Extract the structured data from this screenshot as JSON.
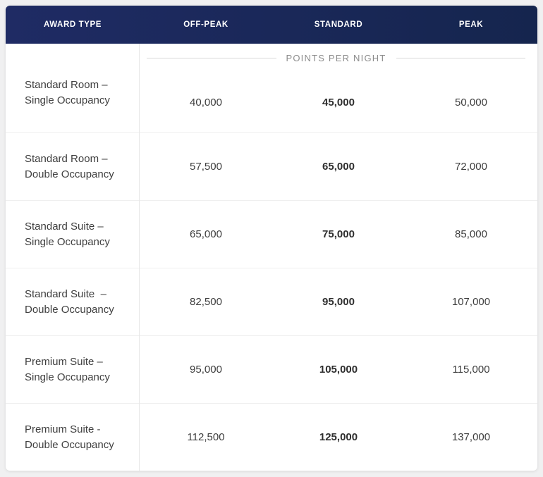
{
  "award_chart": {
    "header": {
      "columns": [
        {
          "label": "AWARD TYPE"
        },
        {
          "label": "OFF-PEAK"
        },
        {
          "label": "STANDARD"
        },
        {
          "label": "PEAK"
        }
      ],
      "background_left": "#1f2b64",
      "background_right": "#15254e",
      "text_color": "#ffffff"
    },
    "group_label": "POINTS PER NIGHT",
    "rows": [
      {
        "award_type": "Standard Room –\nSingle Occupancy",
        "off_peak": "40,000",
        "standard": "45,000",
        "peak": "50,000"
      },
      {
        "award_type": "Standard Room –\nDouble Occupancy",
        "off_peak": "57,500",
        "standard": "65,000",
        "peak": "72,000"
      },
      {
        "award_type": "Standard Suite –\nSingle Occupancy",
        "off_peak": "65,000",
        "standard": "75,000",
        "peak": "85,000"
      },
      {
        "award_type": "Standard Suite  –\nDouble Occupancy",
        "off_peak": "82,500",
        "standard": "95,000",
        "peak": "107,000"
      },
      {
        "award_type": "Premium Suite –\nSingle Occupancy",
        "off_peak": "95,000",
        "standard": "105,000",
        "peak": "115,000"
      },
      {
        "award_type": "Premium Suite -\nDouble Occupancy",
        "off_peak": "112,500",
        "standard": "125,000",
        "peak": "137,000"
      }
    ],
    "colors": {
      "page_background": "#f0f0f1",
      "card_background": "#ffffff",
      "row_separator": "#efefef",
      "column_divider": "#e7e7e7",
      "group_label_text": "#8c8c8c",
      "value_text": "#3d3d3d",
      "bold_value_text": "#2e2e2e"
    }
  },
  "chart_data": {
    "type": "table",
    "title": "Award Chart — Points Per Night",
    "columns": [
      "AWARD TYPE",
      "OFF-PEAK",
      "STANDARD",
      "PEAK"
    ],
    "group_header": "POINTS PER NIGHT",
    "rows": [
      {
        "award_type": "Standard Room – Single Occupancy",
        "off_peak": 40000,
        "standard": 45000,
        "peak": 50000
      },
      {
        "award_type": "Standard Room – Double Occupancy",
        "off_peak": 57500,
        "standard": 65000,
        "peak": 72000
      },
      {
        "award_type": "Standard Suite – Single Occupancy",
        "off_peak": 65000,
        "standard": 75000,
        "peak": 85000
      },
      {
        "award_type": "Standard Suite – Double Occupancy",
        "off_peak": 82500,
        "standard": 95000,
        "peak": 107000
      },
      {
        "award_type": "Premium Suite – Single Occupancy",
        "off_peak": 95000,
        "standard": 105000,
        "peak": 115000
      },
      {
        "award_type": "Premium Suite - Double Occupancy",
        "off_peak": 112500,
        "standard": 125000,
        "peak": 137000
      }
    ],
    "layout_hints": {
      "emphasized_column": "STANDARD",
      "grid": "horizontal row separators + single vertical divider after first column"
    }
  }
}
